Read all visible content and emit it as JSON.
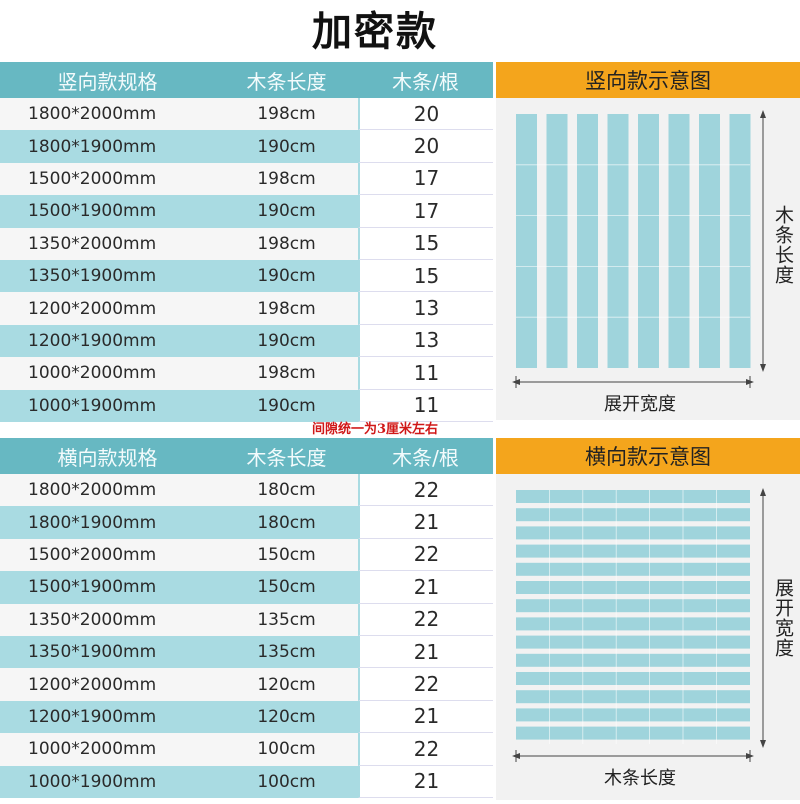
{
  "title": "加密款",
  "vertical": {
    "headers": [
      "竖向款规格",
      "木条长度",
      "木条/根"
    ],
    "rows": [
      [
        "1800*2000mm",
        "198cm",
        "20"
      ],
      [
        "1800*1900mm",
        "190cm",
        "20"
      ],
      [
        "1500*2000mm",
        "198cm",
        "17"
      ],
      [
        "1500*1900mm",
        "190cm",
        "17"
      ],
      [
        "1350*2000mm",
        "198cm",
        "15"
      ],
      [
        "1350*1900mm",
        "190cm",
        "15"
      ],
      [
        "1200*2000mm",
        "198cm",
        "13"
      ],
      [
        "1200*1900mm",
        "190cm",
        "13"
      ],
      [
        "1000*2000mm",
        "198cm",
        "11"
      ],
      [
        "1000*1900mm",
        "190cm",
        "11"
      ]
    ],
    "diagram_title": "竖向款示意图",
    "side_label": "木条长度",
    "bottom_label": "展开宽度"
  },
  "note": "间隙统一为3厘米左右",
  "horizontal": {
    "headers": [
      "横向款规格",
      "木条长度",
      "木条/根"
    ],
    "rows": [
      [
        "1800*2000mm",
        "180cm",
        "22"
      ],
      [
        "1800*1900mm",
        "180cm",
        "21"
      ],
      [
        "1500*2000mm",
        "150cm",
        "22"
      ],
      [
        "1500*1900mm",
        "150cm",
        "21"
      ],
      [
        "1350*2000mm",
        "135cm",
        "22"
      ],
      [
        "1350*1900mm",
        "135cm",
        "21"
      ],
      [
        "1200*2000mm",
        "120cm",
        "22"
      ],
      [
        "1200*1900mm",
        "120cm",
        "21"
      ],
      [
        "1000*2000mm",
        "100cm",
        "22"
      ],
      [
        "1000*1900mm",
        "100cm",
        "21"
      ]
    ],
    "diagram_title": "横向款示意图",
    "side_label": "展开宽度",
    "bottom_label": "木条长度"
  },
  "colors": {
    "header_bg": "#67b8c2",
    "row_alt_bg": "#a9dbe2",
    "slat": "#9fd4dc",
    "panel_head": "#f4a51c",
    "note": "#d01818"
  }
}
